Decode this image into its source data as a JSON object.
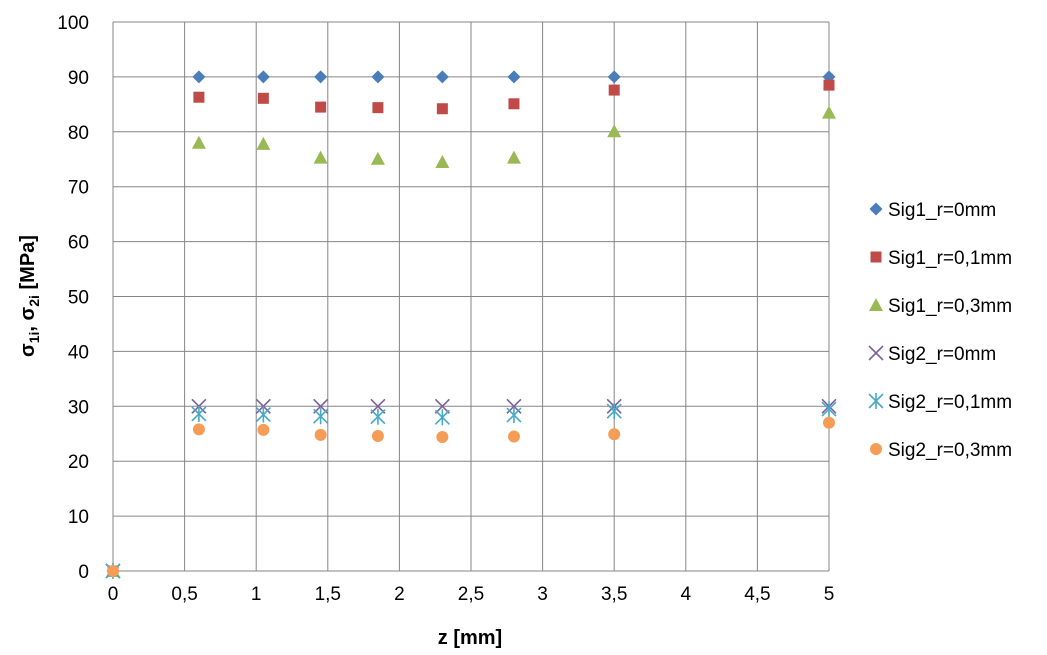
{
  "chart_data": {
    "type": "scatter",
    "xlabel": "z [mm]",
    "ylabel": "σ1i, σ2i [MPa]",
    "ylabel_parts": {
      "a": "σ",
      "a_sub": "1i",
      "sep": ", ",
      "b": "σ",
      "b_sub": "2i",
      "unit": " [MPa]"
    },
    "xlim": [
      0,
      5
    ],
    "ylim": [
      0,
      100
    ],
    "grid": true,
    "legend_position": "right",
    "x_ticks": [
      {
        "v": 0,
        "label": "0"
      },
      {
        "v": 0.5,
        "label": "0,5"
      },
      {
        "v": 1,
        "label": "1"
      },
      {
        "v": 1.5,
        "label": "1,5"
      },
      {
        "v": 2,
        "label": "2"
      },
      {
        "v": 2.5,
        "label": "2,5"
      },
      {
        "v": 3,
        "label": "3"
      },
      {
        "v": 3.5,
        "label": "3,5"
      },
      {
        "v": 4,
        "label": "4"
      },
      {
        "v": 4.5,
        "label": "4,5"
      },
      {
        "v": 5,
        "label": "5"
      }
    ],
    "y_ticks": [
      {
        "v": 0,
        "label": "0"
      },
      {
        "v": 10,
        "label": "10"
      },
      {
        "v": 20,
        "label": "20"
      },
      {
        "v": 30,
        "label": "30"
      },
      {
        "v": 40,
        "label": "40"
      },
      {
        "v": 50,
        "label": "50"
      },
      {
        "v": 60,
        "label": "60"
      },
      {
        "v": 70,
        "label": "70"
      },
      {
        "v": 80,
        "label": "80"
      },
      {
        "v": 90,
        "label": "90"
      },
      {
        "v": 100,
        "label": "100"
      }
    ],
    "series": [
      {
        "name": "Sig1_r=0mm",
        "marker": "diamond",
        "color": "#4a7ebb",
        "x": [
          0,
          0.6,
          1.05,
          1.45,
          1.85,
          2.3,
          2.8,
          3.5,
          5
        ],
        "y": [
          0,
          90,
          90,
          90,
          90,
          90,
          90,
          90,
          90
        ]
      },
      {
        "name": "Sig1_r=0,1mm",
        "marker": "square",
        "color": "#be4b48",
        "x": [
          0,
          0.6,
          1.05,
          1.45,
          1.85,
          2.3,
          2.8,
          3.5,
          5
        ],
        "y": [
          0,
          86.3,
          86.1,
          84.5,
          84.4,
          84.2,
          85.1,
          87.6,
          88.5
        ]
      },
      {
        "name": "Sig1_r=0,3mm",
        "marker": "triangle",
        "color": "#98b954",
        "x": [
          0,
          0.6,
          1.05,
          1.45,
          1.85,
          2.3,
          2.8,
          3.5,
          5
        ],
        "y": [
          0,
          78,
          77.8,
          75.3,
          75.1,
          74.5,
          75.3,
          80.1,
          83.5
        ]
      },
      {
        "name": "Sig2_r=0mm",
        "marker": "x",
        "color": "#7d60a0",
        "x": [
          0,
          0.6,
          1.05,
          1.45,
          1.85,
          2.3,
          2.8,
          3.5,
          5
        ],
        "y": [
          0,
          30,
          30,
          30,
          30,
          30,
          30,
          30,
          30
        ]
      },
      {
        "name": "Sig2_r=0,1mm",
        "marker": "star",
        "color": "#46aac5",
        "x": [
          0,
          0.6,
          1.05,
          1.45,
          1.85,
          2.3,
          2.8,
          3.5,
          5
        ],
        "y": [
          0,
          28.6,
          28.5,
          28.2,
          28.1,
          28,
          28.4,
          29.1,
          29.5
        ]
      },
      {
        "name": "Sig2_r=0,3mm",
        "marker": "circle",
        "color": "#f59d56",
        "x": [
          0,
          0.6,
          1.05,
          1.45,
          1.85,
          2.3,
          2.8,
          3.5,
          5
        ],
        "y": [
          0,
          25.8,
          25.7,
          24.8,
          24.6,
          24.4,
          24.5,
          24.9,
          27
        ]
      }
    ]
  }
}
